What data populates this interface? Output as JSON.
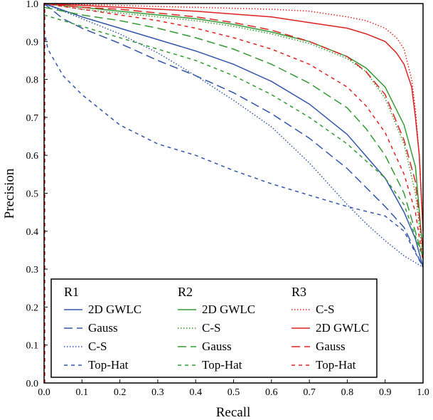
{
  "chart_data": {
    "type": "line",
    "title": "",
    "xlabel": "Recall",
    "ylabel": "Precision",
    "xlim": [
      0,
      1
    ],
    "ylim": [
      0,
      1
    ],
    "xticks": [
      "0.0",
      "0.1",
      "0.2",
      "0.3",
      "0.4",
      "0.5",
      "0.6",
      "0.7",
      "0.8",
      "0.9",
      "1.0"
    ],
    "yticks": [
      "0.0",
      "0.1",
      "0.2",
      "0.3",
      "0.4",
      "0.5",
      "0.6",
      "0.7",
      "0.8",
      "0.9",
      "1.0"
    ],
    "grid": false,
    "legend_position": "bottom-left",
    "legend_groups": [
      {
        "name": "R1",
        "entries": [
          "2D GWLC",
          "Gauss",
          "C-S",
          "Top-Hat"
        ]
      },
      {
        "name": "R2",
        "entries": [
          "2D GWLC",
          "C-S",
          "Gauss",
          "Top-Hat"
        ]
      },
      {
        "name": "R3",
        "entries": [
          "C-S",
          "2D GWLC",
          "Gauss",
          "Top-Hat"
        ]
      }
    ],
    "series": [
      {
        "group": "R1",
        "name": "2D GWLC",
        "color": "#3355aa",
        "style": "solid",
        "x": [
          0,
          0.1,
          0.2,
          0.3,
          0.4,
          0.5,
          0.6,
          0.7,
          0.8,
          0.9,
          0.95,
          0.98,
          1.0
        ],
        "y": [
          1.0,
          0.965,
          0.935,
          0.905,
          0.875,
          0.84,
          0.795,
          0.735,
          0.655,
          0.54,
          0.45,
          0.38,
          0.305
        ]
      },
      {
        "group": "R1",
        "name": "Gauss",
        "color": "#3355aa",
        "style": "dashed",
        "x": [
          0,
          0.05,
          0.1,
          0.2,
          0.3,
          0.4,
          0.5,
          0.6,
          0.7,
          0.8,
          0.9,
          0.95,
          1.0
        ],
        "y": [
          1.0,
          0.96,
          0.935,
          0.895,
          0.85,
          0.81,
          0.765,
          0.71,
          0.645,
          0.565,
          0.465,
          0.41,
          0.305
        ]
      },
      {
        "group": "R1",
        "name": "C-S",
        "color": "#3355aa",
        "style": "dotted",
        "x": [
          0,
          0.1,
          0.2,
          0.3,
          0.4,
          0.5,
          0.6,
          0.7,
          0.8,
          0.85,
          0.9,
          0.95,
          1.0
        ],
        "y": [
          1.0,
          0.96,
          0.92,
          0.87,
          0.81,
          0.745,
          0.675,
          0.58,
          0.47,
          0.42,
          0.375,
          0.335,
          0.305
        ]
      },
      {
        "group": "R1",
        "name": "Top-Hat",
        "color": "#3355aa",
        "style": "short-dashed",
        "x": [
          0,
          0.01,
          0.05,
          0.1,
          0.2,
          0.3,
          0.4,
          0.5,
          0.6,
          0.7,
          0.8,
          0.9,
          0.95,
          1.0
        ],
        "y": [
          0.93,
          0.88,
          0.81,
          0.76,
          0.68,
          0.63,
          0.6,
          0.56,
          0.525,
          0.495,
          0.465,
          0.44,
          0.4,
          0.305
        ]
      },
      {
        "group": "R2",
        "name": "2D GWLC",
        "color": "#339933",
        "style": "solid",
        "x": [
          0,
          0.1,
          0.2,
          0.3,
          0.4,
          0.5,
          0.6,
          0.7,
          0.8,
          0.85,
          0.9,
          0.95,
          0.98,
          1.0
        ],
        "y": [
          1.0,
          0.99,
          0.98,
          0.97,
          0.96,
          0.945,
          0.925,
          0.9,
          0.86,
          0.83,
          0.78,
          0.68,
          0.57,
          0.34
        ]
      },
      {
        "group": "R2",
        "name": "C-S",
        "color": "#339933",
        "style": "dotted",
        "x": [
          0,
          0.1,
          0.2,
          0.3,
          0.4,
          0.5,
          0.6,
          0.7,
          0.8,
          0.85,
          0.9,
          0.95,
          0.98,
          1.0
        ],
        "y": [
          1.0,
          0.985,
          0.975,
          0.965,
          0.955,
          0.94,
          0.92,
          0.895,
          0.855,
          0.82,
          0.75,
          0.63,
          0.5,
          0.33
        ]
      },
      {
        "group": "R2",
        "name": "Gauss",
        "color": "#339933",
        "style": "dashed",
        "x": [
          0,
          0.1,
          0.2,
          0.3,
          0.4,
          0.5,
          0.6,
          0.7,
          0.8,
          0.85,
          0.9,
          0.95,
          1.0
        ],
        "y": [
          0.99,
          0.97,
          0.955,
          0.935,
          0.91,
          0.88,
          0.84,
          0.79,
          0.725,
          0.67,
          0.6,
          0.5,
          0.33
        ]
      },
      {
        "group": "R2",
        "name": "Top-Hat",
        "color": "#339933",
        "style": "short-dashed",
        "x": [
          0,
          0.1,
          0.2,
          0.3,
          0.4,
          0.5,
          0.6,
          0.7,
          0.8,
          0.9,
          0.95,
          1.0
        ],
        "y": [
          0.97,
          0.94,
          0.91,
          0.88,
          0.85,
          0.81,
          0.76,
          0.7,
          0.63,
          0.54,
          0.47,
          0.33
        ]
      },
      {
        "group": "R3",
        "name": "C-S",
        "color": "#dd2222",
        "style": "dotted",
        "x": [
          0,
          0.2,
          0.4,
          0.6,
          0.7,
          0.8,
          0.85,
          0.9,
          0.93,
          0.95,
          0.97,
          0.98,
          0.99,
          1.0
        ],
        "y": [
          1.0,
          0.995,
          0.99,
          0.985,
          0.98,
          0.965,
          0.955,
          0.935,
          0.91,
          0.88,
          0.8,
          0.72,
          0.6,
          0.4
        ]
      },
      {
        "group": "R3",
        "name": "2D GWLC",
        "color": "#dd2222",
        "style": "solid",
        "x": [
          0,
          0.2,
          0.4,
          0.6,
          0.7,
          0.8,
          0.85,
          0.9,
          0.93,
          0.95,
          0.97,
          0.98,
          0.99,
          1.0
        ],
        "y": [
          1.0,
          0.99,
          0.98,
          0.965,
          0.95,
          0.935,
          0.92,
          0.9,
          0.87,
          0.84,
          0.78,
          0.7,
          0.6,
          0.4
        ]
      },
      {
        "group": "R3",
        "name": "Gauss",
        "color": "#dd2222",
        "style": "dashed",
        "x": [
          0,
          0.1,
          0.2,
          0.3,
          0.4,
          0.5,
          0.6,
          0.7,
          0.8,
          0.85,
          0.9,
          0.95,
          0.98,
          1.0
        ],
        "y": [
          1.0,
          0.99,
          0.985,
          0.975,
          0.965,
          0.95,
          0.93,
          0.9,
          0.86,
          0.82,
          0.76,
          0.64,
          0.53,
          0.35
        ]
      },
      {
        "group": "R3",
        "name": "Top-Hat",
        "color": "#dd2222",
        "style": "short-dashed",
        "x": [
          0,
          0.1,
          0.2,
          0.3,
          0.4,
          0.5,
          0.6,
          0.7,
          0.8,
          0.85,
          0.9,
          0.95,
          0.98,
          1.0
        ],
        "y": [
          1.0,
          0.985,
          0.97,
          0.955,
          0.935,
          0.91,
          0.88,
          0.84,
          0.78,
          0.73,
          0.66,
          0.55,
          0.45,
          0.32
        ]
      }
    ]
  }
}
